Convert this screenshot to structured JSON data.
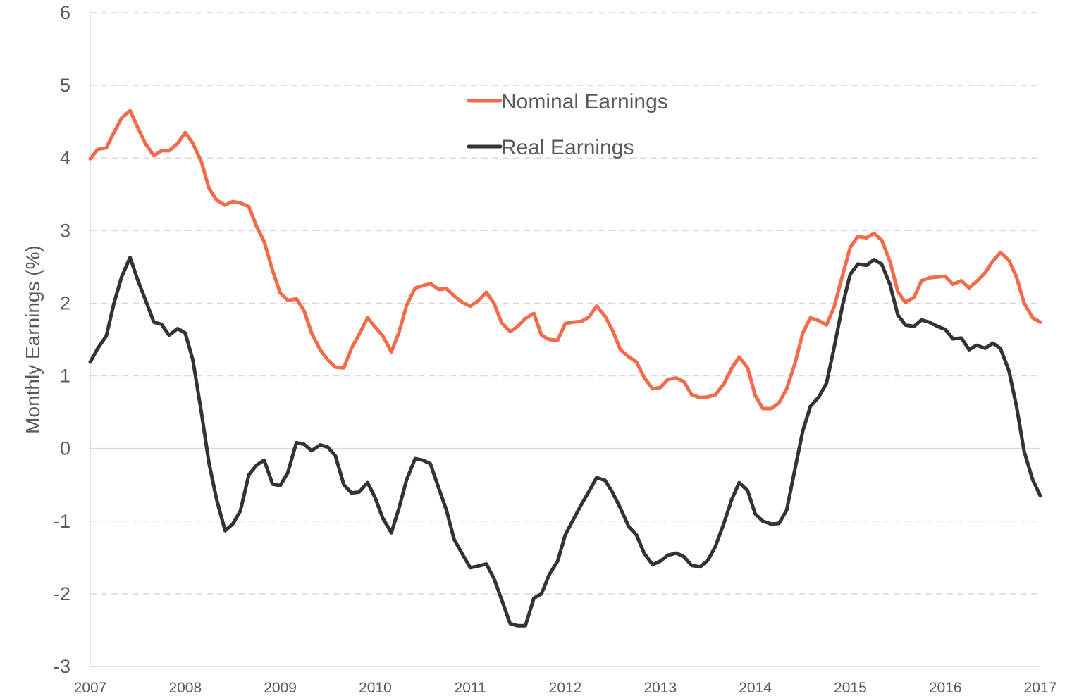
{
  "chart_data": {
    "type": "line",
    "title": "",
    "xlabel": "",
    "ylabel": "Monthly Earnings (%)",
    "ylim": [
      -3,
      6
    ],
    "xlim": [
      2007,
      2017
    ],
    "yticks": [
      "-3",
      "-2",
      "-1",
      "0",
      "1",
      "2",
      "3",
      "4",
      "5",
      "6"
    ],
    "xticks": [
      "2007",
      "2008",
      "2009",
      "2010",
      "2011",
      "2012",
      "2013",
      "2014",
      "2015",
      "2016",
      "2017"
    ],
    "grid": "horizontal dashed",
    "legend": "top-center",
    "series": [
      {
        "name": "Nominal Earnings",
        "color": "#F26B4B",
        "points": [
          [
            2007.0,
            3.99
          ],
          [
            2007.08,
            4.12
          ],
          [
            2007.17,
            4.14
          ],
          [
            2007.25,
            4.35
          ],
          [
            2007.33,
            4.55
          ],
          [
            2007.42,
            4.65
          ],
          [
            2007.5,
            4.42
          ],
          [
            2007.58,
            4.2
          ],
          [
            2007.67,
            4.03
          ],
          [
            2007.75,
            4.1
          ],
          [
            2007.83,
            4.1
          ],
          [
            2007.92,
            4.2
          ],
          [
            2008.0,
            4.35
          ],
          [
            2008.08,
            4.2
          ],
          [
            2008.17,
            3.95
          ],
          [
            2008.25,
            3.58
          ],
          [
            2008.33,
            3.42
          ],
          [
            2008.42,
            3.35
          ],
          [
            2008.5,
            3.4
          ],
          [
            2008.58,
            3.38
          ],
          [
            2008.67,
            3.33
          ],
          [
            2008.75,
            3.06
          ],
          [
            2008.83,
            2.85
          ],
          [
            2008.92,
            2.45
          ],
          [
            2009.0,
            2.14
          ],
          [
            2009.08,
            2.04
          ],
          [
            2009.17,
            2.06
          ],
          [
            2009.25,
            1.9
          ],
          [
            2009.33,
            1.59
          ],
          [
            2009.42,
            1.36
          ],
          [
            2009.5,
            1.22
          ],
          [
            2009.58,
            1.12
          ],
          [
            2009.67,
            1.11
          ],
          [
            2009.75,
            1.38
          ],
          [
            2009.83,
            1.57
          ],
          [
            2009.92,
            1.8
          ],
          [
            2010.0,
            1.67
          ],
          [
            2010.08,
            1.55
          ],
          [
            2010.17,
            1.33
          ],
          [
            2010.25,
            1.6
          ],
          [
            2010.33,
            1.97
          ],
          [
            2010.42,
            2.21
          ],
          [
            2010.5,
            2.24
          ],
          [
            2010.58,
            2.27
          ],
          [
            2010.67,
            2.19
          ],
          [
            2010.75,
            2.2
          ],
          [
            2010.83,
            2.1
          ],
          [
            2010.92,
            2.01
          ],
          [
            2011.0,
            1.96
          ],
          [
            2011.08,
            2.03
          ],
          [
            2011.17,
            2.15
          ],
          [
            2011.25,
            2.0
          ],
          [
            2011.33,
            1.73
          ],
          [
            2011.42,
            1.61
          ],
          [
            2011.5,
            1.68
          ],
          [
            2011.58,
            1.79
          ],
          [
            2011.67,
            1.86
          ],
          [
            2011.75,
            1.56
          ],
          [
            2011.83,
            1.5
          ],
          [
            2011.92,
            1.49
          ],
          [
            2012.0,
            1.72
          ],
          [
            2012.08,
            1.74
          ],
          [
            2012.17,
            1.75
          ],
          [
            2012.25,
            1.81
          ],
          [
            2012.33,
            1.96
          ],
          [
            2012.42,
            1.82
          ],
          [
            2012.5,
            1.62
          ],
          [
            2012.58,
            1.36
          ],
          [
            2012.67,
            1.26
          ],
          [
            2012.75,
            1.19
          ],
          [
            2012.83,
            0.98
          ],
          [
            2012.92,
            0.82
          ],
          [
            2013.0,
            0.84
          ],
          [
            2013.08,
            0.95
          ],
          [
            2013.17,
            0.97
          ],
          [
            2013.25,
            0.92
          ],
          [
            2013.33,
            0.74
          ],
          [
            2013.42,
            0.7
          ],
          [
            2013.5,
            0.71
          ],
          [
            2013.58,
            0.74
          ],
          [
            2013.67,
            0.89
          ],
          [
            2013.75,
            1.1
          ],
          [
            2013.83,
            1.26
          ],
          [
            2013.92,
            1.11
          ],
          [
            2014.0,
            0.73
          ],
          [
            2014.08,
            0.55
          ],
          [
            2014.17,
            0.55
          ],
          [
            2014.25,
            0.63
          ],
          [
            2014.33,
            0.82
          ],
          [
            2014.42,
            1.18
          ],
          [
            2014.5,
            1.59
          ],
          [
            2014.58,
            1.8
          ],
          [
            2014.67,
            1.76
          ],
          [
            2014.75,
            1.7
          ],
          [
            2014.83,
            1.95
          ],
          [
            2014.92,
            2.39
          ],
          [
            2015.0,
            2.77
          ],
          [
            2015.08,
            2.92
          ],
          [
            2015.17,
            2.9
          ],
          [
            2015.25,
            2.96
          ],
          [
            2015.33,
            2.87
          ],
          [
            2015.42,
            2.57
          ],
          [
            2015.5,
            2.16
          ],
          [
            2015.58,
            2.01
          ],
          [
            2015.67,
            2.08
          ],
          [
            2015.75,
            2.31
          ],
          [
            2015.83,
            2.35
          ],
          [
            2015.92,
            2.36
          ],
          [
            2016.0,
            2.37
          ],
          [
            2016.08,
            2.26
          ],
          [
            2016.17,
            2.31
          ],
          [
            2016.25,
            2.21
          ],
          [
            2016.33,
            2.3
          ],
          [
            2016.42,
            2.42
          ],
          [
            2016.5,
            2.58
          ],
          [
            2016.58,
            2.7
          ],
          [
            2016.67,
            2.59
          ],
          [
            2016.75,
            2.36
          ],
          [
            2016.83,
            2.0
          ],
          [
            2016.92,
            1.8
          ],
          [
            2017.0,
            1.74
          ]
        ]
      },
      {
        "name": "Real Earnings",
        "color": "#333333",
        "points": [
          [
            2007.0,
            1.19
          ],
          [
            2007.08,
            1.38
          ],
          [
            2007.17,
            1.55
          ],
          [
            2007.25,
            2.0
          ],
          [
            2007.33,
            2.36
          ],
          [
            2007.42,
            2.63
          ],
          [
            2007.5,
            2.32
          ],
          [
            2007.58,
            2.05
          ],
          [
            2007.67,
            1.74
          ],
          [
            2007.75,
            1.71
          ],
          [
            2007.83,
            1.56
          ],
          [
            2007.92,
            1.65
          ],
          [
            2008.0,
            1.59
          ],
          [
            2008.08,
            1.22
          ],
          [
            2008.17,
            0.5
          ],
          [
            2008.25,
            -0.2
          ],
          [
            2008.33,
            -0.7
          ],
          [
            2008.42,
            -1.13
          ],
          [
            2008.5,
            -1.04
          ],
          [
            2008.58,
            -0.86
          ],
          [
            2008.67,
            -0.36
          ],
          [
            2008.75,
            -0.23
          ],
          [
            2008.83,
            -0.16
          ],
          [
            2008.92,
            -0.49
          ],
          [
            2009.0,
            -0.51
          ],
          [
            2009.08,
            -0.33
          ],
          [
            2009.17,
            0.08
          ],
          [
            2009.25,
            0.06
          ],
          [
            2009.33,
            -0.03
          ],
          [
            2009.42,
            0.05
          ],
          [
            2009.5,
            0.02
          ],
          [
            2009.58,
            -0.1
          ],
          [
            2009.67,
            -0.5
          ],
          [
            2009.75,
            -0.61
          ],
          [
            2009.83,
            -0.6
          ],
          [
            2009.92,
            -0.47
          ],
          [
            2010.0,
            -0.68
          ],
          [
            2010.08,
            -0.96
          ],
          [
            2010.17,
            -1.16
          ],
          [
            2010.25,
            -0.82
          ],
          [
            2010.33,
            -0.43
          ],
          [
            2010.42,
            -0.14
          ],
          [
            2010.5,
            -0.16
          ],
          [
            2010.58,
            -0.21
          ],
          [
            2010.67,
            -0.55
          ],
          [
            2010.75,
            -0.85
          ],
          [
            2010.83,
            -1.25
          ],
          [
            2010.92,
            -1.46
          ],
          [
            2011.0,
            -1.64
          ],
          [
            2011.08,
            -1.62
          ],
          [
            2011.17,
            -1.59
          ],
          [
            2011.25,
            -1.79
          ],
          [
            2011.33,
            -2.08
          ],
          [
            2011.42,
            -2.41
          ],
          [
            2011.5,
            -2.44
          ],
          [
            2011.58,
            -2.44
          ],
          [
            2011.67,
            -2.06
          ],
          [
            2011.75,
            -2.0
          ],
          [
            2011.83,
            -1.74
          ],
          [
            2011.92,
            -1.55
          ],
          [
            2012.0,
            -1.19
          ],
          [
            2012.08,
            -0.99
          ],
          [
            2012.17,
            -0.77
          ],
          [
            2012.25,
            -0.59
          ],
          [
            2012.33,
            -0.4
          ],
          [
            2012.42,
            -0.44
          ],
          [
            2012.5,
            -0.61
          ],
          [
            2012.58,
            -0.82
          ],
          [
            2012.67,
            -1.08
          ],
          [
            2012.75,
            -1.19
          ],
          [
            2012.83,
            -1.44
          ],
          [
            2012.92,
            -1.6
          ],
          [
            2013.0,
            -1.55
          ],
          [
            2013.08,
            -1.47
          ],
          [
            2013.17,
            -1.44
          ],
          [
            2013.25,
            -1.49
          ],
          [
            2013.33,
            -1.61
          ],
          [
            2013.42,
            -1.63
          ],
          [
            2013.5,
            -1.54
          ],
          [
            2013.58,
            -1.35
          ],
          [
            2013.67,
            -1.03
          ],
          [
            2013.75,
            -0.71
          ],
          [
            2013.83,
            -0.47
          ],
          [
            2013.92,
            -0.58
          ],
          [
            2014.0,
            -0.9
          ],
          [
            2014.08,
            -1.0
          ],
          [
            2014.17,
            -1.04
          ],
          [
            2014.25,
            -1.03
          ],
          [
            2014.33,
            -0.85
          ],
          [
            2014.42,
            -0.27
          ],
          [
            2014.5,
            0.24
          ],
          [
            2014.58,
            0.58
          ],
          [
            2014.67,
            0.71
          ],
          [
            2014.75,
            0.9
          ],
          [
            2014.83,
            1.39
          ],
          [
            2014.92,
            1.98
          ],
          [
            2015.0,
            2.4
          ],
          [
            2015.08,
            2.54
          ],
          [
            2015.17,
            2.52
          ],
          [
            2015.25,
            2.6
          ],
          [
            2015.33,
            2.54
          ],
          [
            2015.42,
            2.25
          ],
          [
            2015.5,
            1.84
          ],
          [
            2015.58,
            1.7
          ],
          [
            2015.67,
            1.68
          ],
          [
            2015.75,
            1.77
          ],
          [
            2015.83,
            1.74
          ],
          [
            2015.92,
            1.68
          ],
          [
            2016.0,
            1.64
          ],
          [
            2016.08,
            1.51
          ],
          [
            2016.17,
            1.52
          ],
          [
            2016.25,
            1.36
          ],
          [
            2016.33,
            1.42
          ],
          [
            2016.42,
            1.38
          ],
          [
            2016.5,
            1.45
          ],
          [
            2016.58,
            1.38
          ],
          [
            2016.67,
            1.07
          ],
          [
            2016.75,
            0.58
          ],
          [
            2016.83,
            -0.04
          ],
          [
            2016.92,
            -0.43
          ],
          [
            2017.0,
            -0.65
          ]
        ]
      }
    ]
  }
}
